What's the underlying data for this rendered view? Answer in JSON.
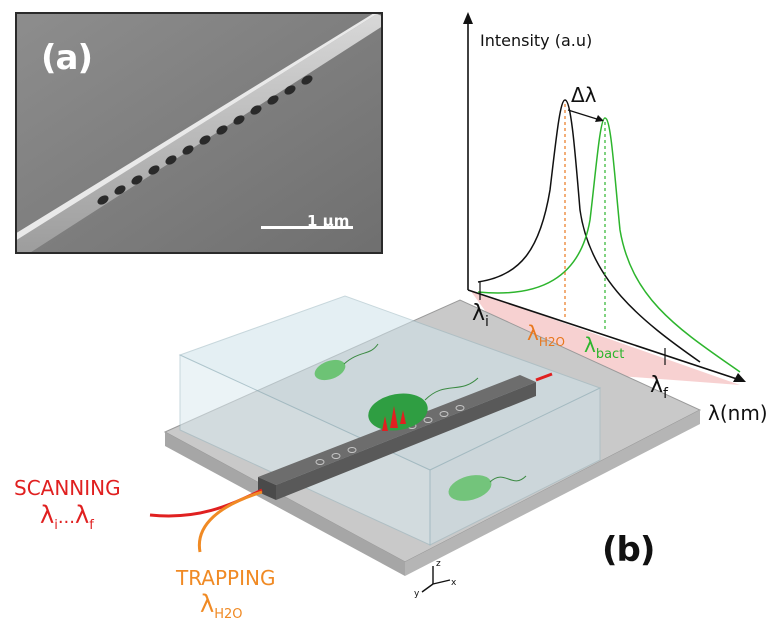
{
  "panel_a": {
    "label": "(a)",
    "scale_bar": "1 μm"
  },
  "panel_b": {
    "label": "(b)",
    "scanning": {
      "title": "SCANNING",
      "range_start": "λ",
      "range_start_sub": "i",
      "range_sep": "...",
      "range_end": "λ",
      "range_end_sub": "f"
    },
    "trapping": {
      "title": "TRAPPING",
      "lambda": "λ",
      "lambda_sub": "H2O"
    },
    "axes_triad": {
      "z": "z",
      "y": "y",
      "x": "x"
    }
  },
  "spectrum": {
    "y_axis_label": "Intensity (a.u)",
    "x_axis_label": "λ(nm)",
    "shift_label": "Δλ",
    "lambda_i": {
      "symbol": "λ",
      "sub": "i"
    },
    "lambda_f": {
      "symbol": "λ",
      "sub": "f"
    },
    "lambda_h2o": {
      "symbol": "λ",
      "sub": "H2O"
    },
    "lambda_bact": {
      "symbol": "λ",
      "sub": "bact"
    },
    "colors": {
      "water_peak": "#111111",
      "bacteria_peak": "#2db52d",
      "water_marker": "#e8771e",
      "scan_region": "#f4c2c2"
    }
  },
  "colors": {
    "scanning": "#e02020",
    "trapping": "#f08a24",
    "bacteria": "#3aa84a"
  }
}
